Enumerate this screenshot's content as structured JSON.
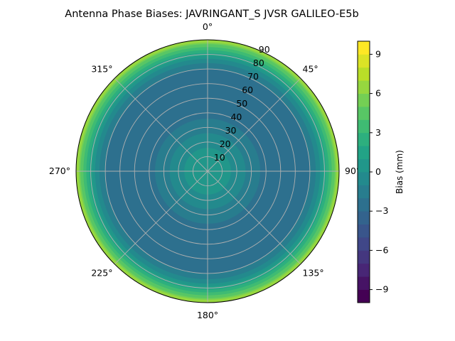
{
  "chart_data": {
    "type": "heatmap",
    "projection": "polar",
    "title": "Antenna Phase Biases: JAVRINGANT_S    JVSR GALILEO-E5b",
    "theta_direction": "clockwise",
    "theta_zero": "top",
    "theta_tick_labels": [
      "0°",
      "45°",
      "90°",
      "135°",
      "180°",
      "225°",
      "270°",
      "315°"
    ],
    "radial_ticks": [
      10,
      20,
      30,
      40,
      50,
      60,
      70,
      80,
      90
    ],
    "rlim": [
      0,
      90
    ],
    "grid": true,
    "colormap": "viridis",
    "colorbar": {
      "label": "Bias (mm)",
      "range": [
        -10,
        10
      ],
      "ticks": [
        -9,
        -6,
        -3,
        0,
        3,
        6,
        9
      ],
      "tick_labels": [
        "−9",
        "−6",
        "−3",
        "0",
        "3",
        "6",
        "9"
      ],
      "levels": 20
    },
    "radial_profile": {
      "radius": [
        0,
        10,
        20,
        30,
        40,
        50,
        60,
        70,
        75,
        80,
        85,
        90
      ],
      "bias_mm": [
        0.5,
        0.5,
        -0.5,
        -1.5,
        -2.5,
        -3,
        -3,
        -2,
        -0.5,
        1.5,
        4,
        7.5
      ]
    }
  }
}
